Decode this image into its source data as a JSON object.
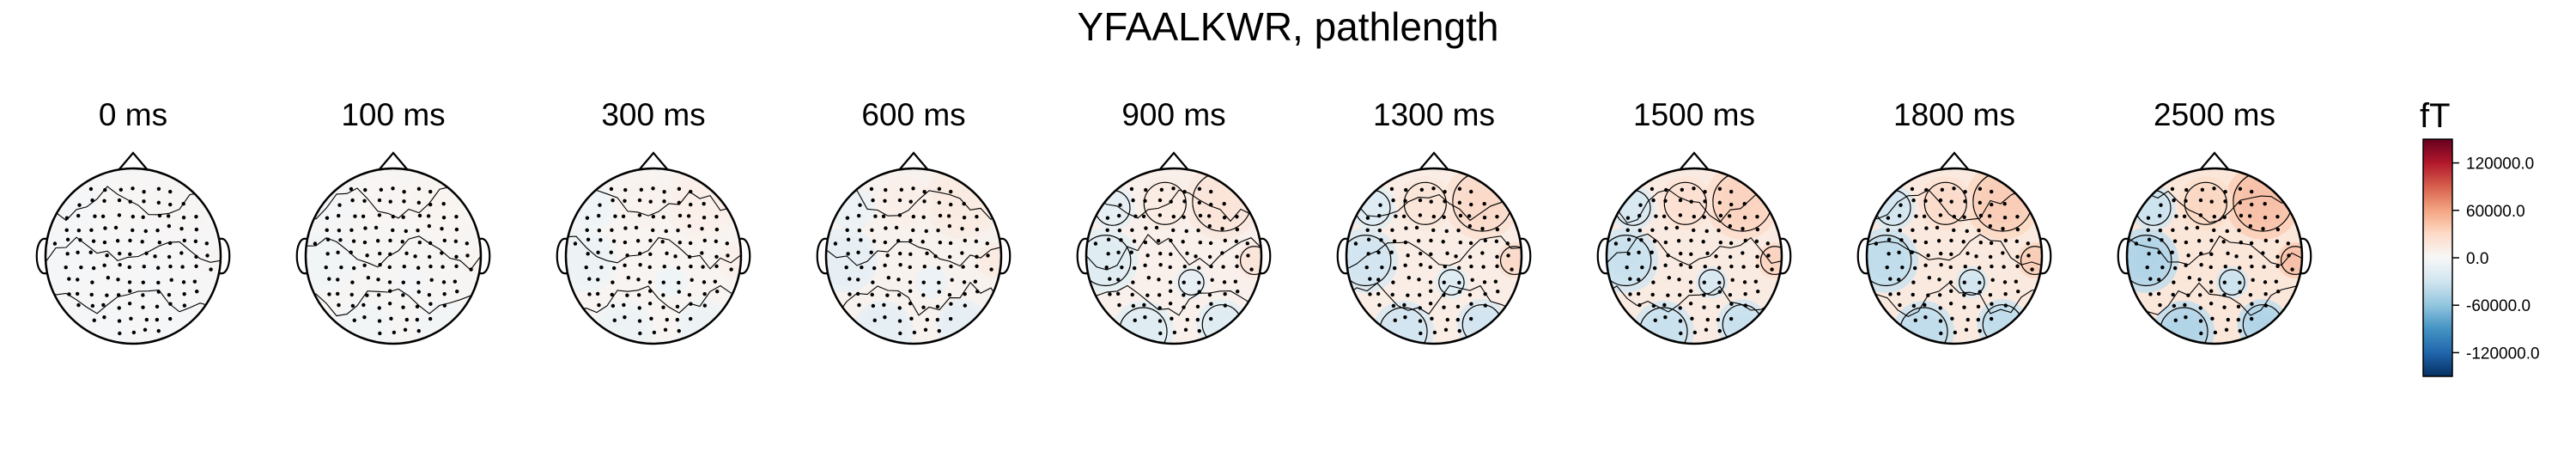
{
  "chart_data": {
    "type": "heatmap",
    "title": "YFAALKWR, pathlength",
    "panels": [
      {
        "label": "0 ms",
        "intensity": 0.05
      },
      {
        "label": "100 ms",
        "intensity": 0.1
      },
      {
        "label": "300 ms",
        "intensity": 0.2
      },
      {
        "label": "600 ms",
        "intensity": 0.3
      },
      {
        "label": "900 ms",
        "intensity": 0.42
      },
      {
        "label": "1300 ms",
        "intensity": 0.62
      },
      {
        "label": "1500 ms",
        "intensity": 0.74
      },
      {
        "label": "1800 ms",
        "intensity": 0.85
      },
      {
        "label": "2500 ms",
        "intensity": 1.0
      }
    ],
    "colorbar": {
      "unit": "fT",
      "vmin": -150000,
      "vmax": 150000,
      "ticks": [
        "120000.0",
        "60000.0",
        "0.0",
        "-60000.0",
        "-120000.0"
      ],
      "tick_values": [
        120000,
        60000,
        0,
        -60000,
        -120000
      ],
      "colormap": [
        "#053061",
        "#2166ac",
        "#4393c3",
        "#92c5de",
        "#d1e5f0",
        "#f7f7f7",
        "#fddbc7",
        "#f4a582",
        "#d6604d",
        "#b2182b",
        "#67001f"
      ]
    }
  }
}
